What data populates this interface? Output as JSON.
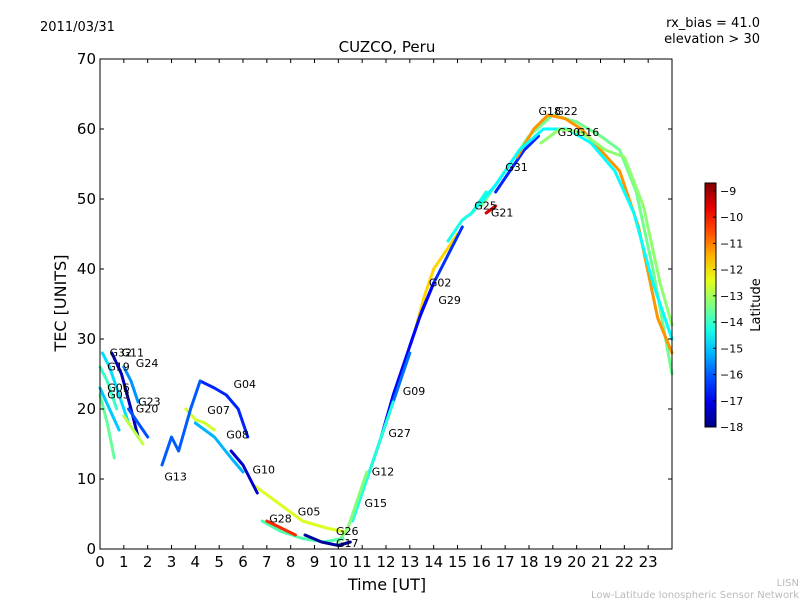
{
  "chart_data": {
    "type": "line",
    "title": "CUZCO, Peru",
    "date": "2011/03/31",
    "rx_bias": "rx_bias = 41.0",
    "elevation": "elevation > 30",
    "xlabel": "Time [UT]",
    "ylabel": "TEC [UNITS]",
    "xlim": [
      0,
      24
    ],
    "ylim": [
      0,
      70
    ],
    "x_ticks": [
      "0",
      "1",
      "2",
      "3",
      "4",
      "5",
      "6",
      "7",
      "8",
      "9",
      "10",
      "11",
      "12",
      "13",
      "14",
      "15",
      "16",
      "17",
      "18",
      "19",
      "20",
      "21",
      "22",
      "23"
    ],
    "y_ticks": [
      "0",
      "10",
      "20",
      "30",
      "40",
      "50",
      "60",
      "70"
    ],
    "colorbar": {
      "label": "Latitude",
      "range": [
        -18,
        -8.7
      ],
      "ticks": [
        "−9",
        "−10",
        "−11",
        "−12",
        "−13",
        "−14",
        "−15",
        "−16",
        "−17",
        "−18"
      ],
      "tick_values": [
        -9,
        -10,
        -11,
        -12,
        -13,
        -14,
        -15,
        -16,
        -17,
        -18
      ]
    },
    "footer": [
      "LISN",
      "Low-Latitude Ionospheric Sensor Network"
    ],
    "series": [
      {
        "name": "G31",
        "lat": -16.5,
        "points": [
          [
            16.6,
            51
          ],
          [
            17.2,
            54
          ],
          [
            17.8,
            57
          ],
          [
            18.4,
            59
          ]
        ],
        "label": [
          17.0,
          54
        ]
      },
      {
        "name": "G22",
        "lat": -13.5,
        "points": [
          [
            16.0,
            49
          ],
          [
            17.0,
            54
          ],
          [
            18.0,
            59
          ],
          [
            19.0,
            62
          ],
          [
            20.0,
            61
          ],
          [
            21.0,
            59
          ],
          [
            21.8,
            57
          ],
          [
            22.5,
            51
          ],
          [
            23.2,
            40
          ],
          [
            24.0,
            25
          ]
        ],
        "label": [
          19.1,
          62
        ]
      },
      {
        "name": "G18",
        "lat": -11.2,
        "points": [
          [
            17.5,
            56
          ],
          [
            18.2,
            60
          ],
          [
            18.8,
            62
          ],
          [
            19.5,
            61.5
          ],
          [
            20.2,
            60
          ],
          [
            21.0,
            57
          ],
          [
            21.8,
            54
          ],
          [
            22.6,
            46
          ],
          [
            23.4,
            33
          ],
          [
            24.0,
            28
          ]
        ],
        "label": [
          18.4,
          62
        ]
      },
      {
        "name": "G30",
        "lat": -14.5,
        "points": [
          [
            15.6,
            48
          ],
          [
            16.6,
            52
          ],
          [
            17.6,
            57
          ],
          [
            18.6,
            60
          ],
          [
            19.6,
            60
          ],
          [
            20.6,
            58
          ],
          [
            21.6,
            54
          ],
          [
            22.4,
            48
          ],
          [
            23.2,
            38
          ],
          [
            24.0,
            30
          ]
        ],
        "label": [
          19.2,
          59
        ]
      },
      {
        "name": "G16",
        "lat": -13.2,
        "points": [
          [
            18.5,
            58
          ],
          [
            19.3,
            60
          ],
          [
            20.2,
            59.5
          ],
          [
            21.2,
            57
          ],
          [
            22.0,
            56
          ],
          [
            22.8,
            49
          ],
          [
            23.5,
            38
          ],
          [
            24.0,
            32
          ]
        ],
        "label": [
          20.0,
          59
        ]
      },
      {
        "name": "G25",
        "lat": -14.3,
        "points": [
          [
            14.6,
            44
          ],
          [
            15.2,
            47
          ],
          [
            15.6,
            48
          ],
          [
            16.2,
            51
          ]
        ],
        "label": [
          15.7,
          48.5
        ]
      },
      {
        "name": "G21",
        "lat": -9.5,
        "points": [
          [
            16.2,
            48
          ],
          [
            16.6,
            49
          ]
        ],
        "label": [
          16.4,
          47.5
        ]
      },
      {
        "name": "G02",
        "lat": -11.8,
        "points": [
          [
            13.2,
            31
          ],
          [
            13.6,
            36
          ],
          [
            14.0,
            40
          ],
          [
            14.6,
            43
          ],
          [
            15.0,
            45
          ]
        ],
        "label": [
          13.8,
          37.5
        ]
      },
      {
        "name": "G29",
        "lat": -16.4,
        "points": [
          [
            13.0,
            29
          ],
          [
            13.5,
            34
          ],
          [
            14.0,
            38
          ],
          [
            14.6,
            42
          ],
          [
            15.2,
            46
          ]
        ],
        "label": [
          14.2,
          35
        ]
      },
      {
        "name": "G09",
        "lat": -16.8,
        "points": [
          [
            11.8,
            16
          ],
          [
            12.3,
            22
          ],
          [
            12.8,
            27
          ],
          [
            13.4,
            33
          ],
          [
            14.0,
            38
          ]
        ],
        "label": [
          12.7,
          22
        ]
      },
      {
        "name": "G27",
        "lat": -15.8,
        "points": [
          [
            11.2,
            10
          ],
          [
            11.6,
            14
          ],
          [
            12.0,
            18
          ],
          [
            12.5,
            23
          ],
          [
            13.0,
            28
          ]
        ],
        "label": [
          12.1,
          16
        ]
      },
      {
        "name": "G12",
        "lat": -14.2,
        "points": [
          [
            10.6,
            4
          ],
          [
            11.0,
            8
          ],
          [
            11.4,
            12
          ],
          [
            11.8,
            16
          ],
          [
            12.3,
            21
          ]
        ],
        "label": [
          11.4,
          10.5
        ]
      },
      {
        "name": "G15",
        "lat": -13.3,
        "points": [
          [
            10.0,
            1
          ],
          [
            10.4,
            3
          ],
          [
            10.8,
            7
          ],
          [
            11.2,
            11
          ]
        ],
        "label": [
          11.1,
          6
        ]
      },
      {
        "name": "G26",
        "lat": -13.8,
        "points": [
          [
            6.8,
            4
          ],
          [
            7.6,
            2.5
          ],
          [
            8.5,
            1.5
          ],
          [
            9.4,
            1
          ],
          [
            10.2,
            1.5
          ]
        ],
        "label": [
          9.9,
          2
        ]
      },
      {
        "name": "G17",
        "lat": -17.7,
        "points": [
          [
            8.6,
            2
          ],
          [
            9.3,
            1
          ],
          [
            10.0,
            0.5
          ],
          [
            10.5,
            1
          ]
        ],
        "label": [
          9.9,
          0.3
        ]
      },
      {
        "name": "G28",
        "lat": -10.2,
        "points": [
          [
            7.0,
            4
          ],
          [
            7.6,
            3
          ],
          [
            8.2,
            2
          ]
        ],
        "label": [
          7.1,
          3.8
        ]
      },
      {
        "name": "G05",
        "lat": -12.5,
        "points": [
          [
            6.5,
            9
          ],
          [
            7.5,
            6.5
          ],
          [
            8.5,
            4
          ],
          [
            9.5,
            3
          ],
          [
            10.2,
            2.5
          ]
        ],
        "label": [
          8.3,
          4.8
        ]
      },
      {
        "name": "G10",
        "lat": -17.3,
        "points": [
          [
            5.5,
            14
          ],
          [
            6.0,
            12
          ],
          [
            6.6,
            8
          ]
        ],
        "label": [
          6.4,
          10.8
        ]
      },
      {
        "name": "G08",
        "lat": -15.2,
        "points": [
          [
            4.0,
            18
          ],
          [
            4.8,
            16
          ],
          [
            5.5,
            13
          ],
          [
            6.0,
            11
          ]
        ],
        "label": [
          5.3,
          15.8
        ]
      },
      {
        "name": "G07",
        "lat": -12.6,
        "points": [
          [
            3.6,
            20
          ],
          [
            4.0,
            18.5
          ],
          [
            4.4,
            18
          ],
          [
            4.8,
            17
          ]
        ],
        "label": [
          4.5,
          19.3
        ]
      },
      {
        "name": "G04",
        "lat": -16.5,
        "points": [
          [
            4.2,
            24
          ],
          [
            4.8,
            23
          ],
          [
            5.3,
            22
          ],
          [
            5.8,
            20
          ],
          [
            6.2,
            16
          ]
        ],
        "label": [
          5.6,
          23
        ]
      },
      {
        "name": "G13",
        "lat": -16.0,
        "points": [
          [
            2.6,
            12
          ],
          [
            3.0,
            16
          ],
          [
            3.3,
            14
          ],
          [
            3.8,
            20
          ],
          [
            4.2,
            24
          ]
        ],
        "label": [
          2.7,
          9.8
        ]
      },
      {
        "name": "G11",
        "lat": -17.5,
        "points": [
          [
            0.5,
            28
          ],
          [
            0.9,
            25
          ],
          [
            1.3,
            20
          ],
          [
            1.6,
            16
          ]
        ],
        "label": [
          0.9,
          27.5
        ]
      },
      {
        "name": "G32",
        "lat": -14.8,
        "points": [
          [
            0.1,
            28
          ],
          [
            0.4,
            26
          ],
          [
            0.8,
            22
          ],
          [
            1.2,
            18
          ]
        ],
        "label": [
          0.4,
          27.5
        ]
      },
      {
        "name": "G24",
        "lat": -15.5,
        "points": [
          [
            1.0,
            26
          ],
          [
            1.3,
            24
          ],
          [
            1.6,
            21
          ]
        ],
        "label": [
          1.5,
          26
        ]
      },
      {
        "name": "G19",
        "lat": -14.0,
        "points": [
          [
            0.0,
            26
          ],
          [
            0.3,
            24
          ],
          [
            0.7,
            20
          ]
        ],
        "label": [
          0.3,
          25.5
        ]
      },
      {
        "name": "G06",
        "lat": -15.0,
        "points": [
          [
            0.0,
            23
          ],
          [
            0.4,
            20
          ],
          [
            0.8,
            17
          ]
        ],
        "label": [
          0.3,
          22.5
        ]
      },
      {
        "name": "G03",
        "lat": -13.6,
        "points": [
          [
            0.0,
            22
          ],
          [
            0.3,
            18
          ],
          [
            0.6,
            13
          ]
        ],
        "label": [
          0.3,
          21.5
        ]
      },
      {
        "name": "G23",
        "lat": -16.1,
        "points": [
          [
            1.2,
            20
          ],
          [
            1.6,
            18
          ],
          [
            2.0,
            16
          ]
        ],
        "label": [
          1.6,
          20.5
        ]
      },
      {
        "name": "G20",
        "lat": -12.8,
        "points": [
          [
            1.0,
            19
          ],
          [
            1.4,
            17
          ],
          [
            1.8,
            15
          ]
        ],
        "label": [
          1.5,
          19.5
        ]
      }
    ]
  }
}
